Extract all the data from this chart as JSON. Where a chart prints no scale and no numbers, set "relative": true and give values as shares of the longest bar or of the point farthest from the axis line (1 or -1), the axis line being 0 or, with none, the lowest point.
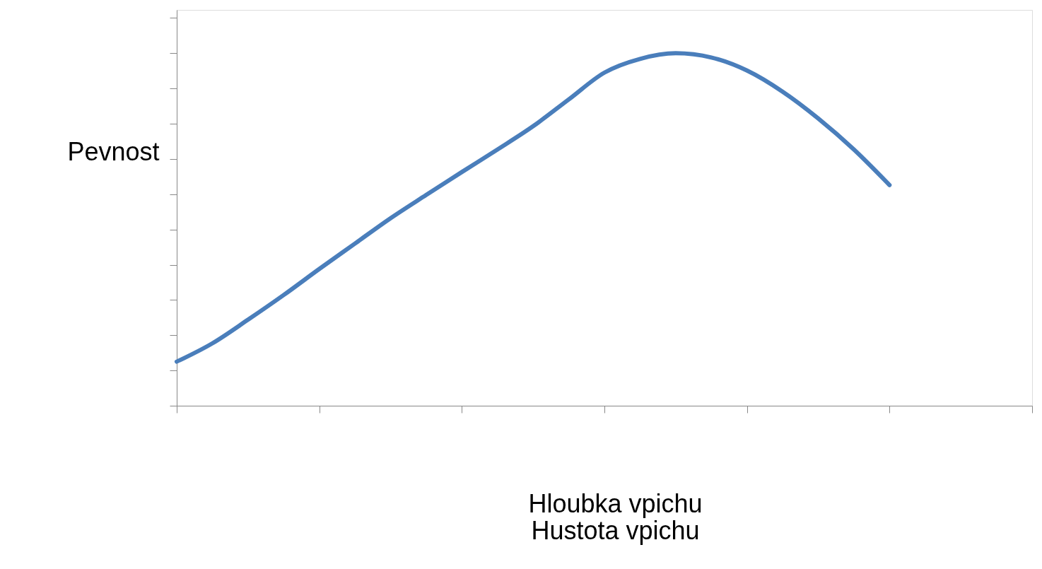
{
  "chart_data": {
    "type": "line",
    "xlabel": "Hloubka vpichu\nHustota vpichu",
    "ylabel": "Pevnost",
    "relative": true,
    "grid": false,
    "marker": "none",
    "line_style": "solid",
    "categories": [
      null,
      null,
      null,
      null,
      null,
      null,
      null,
      null,
      null,
      null,
      null,
      null,
      null,
      null,
      null,
      null,
      null,
      null,
      null,
      null,
      null,
      null,
      null,
      null,
      null
    ],
    "series": [
      {
        "color": "#4a7ebb",
        "values": [
          0.125,
          0.177,
          0.244,
          0.314,
          0.388,
          0.46,
          0.532,
          0.598,
          0.663,
          0.727,
          0.793,
          0.869,
          0.945,
          0.984,
          1,
          0.988,
          0.951,
          0.891,
          0.815,
          0.727,
          0.626,
          null,
          null,
          null,
          null
        ]
      }
    ]
  }
}
